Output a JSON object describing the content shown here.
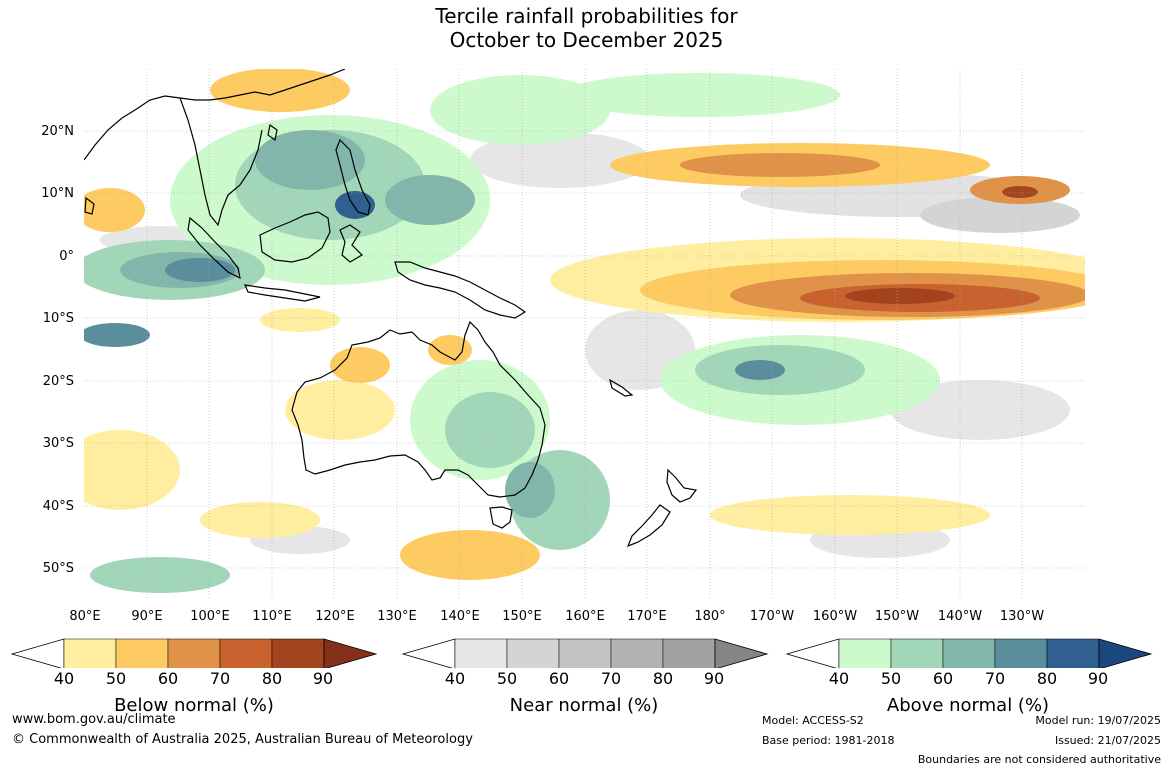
{
  "title": {
    "line1": "Tercile rainfall probabilities for",
    "line2": "October to December 2025"
  },
  "map": {
    "lat_labels": [
      "20°N",
      "10°N",
      "0°",
      "10°S",
      "20°S",
      "30°S",
      "40°S",
      "50°S"
    ],
    "lon_labels": [
      "80°E",
      "90°E",
      "100°E",
      "110°E",
      "120°E",
      "130°E",
      "140°E",
      "150°E",
      "160°E",
      "170°E",
      "180°",
      "170°W",
      "160°W",
      "150°W",
      "140°W",
      "130°W"
    ],
    "colors": {
      "ocean_base": "#ffffff",
      "land_outline": "#000000",
      "gridline": "#aaaaaa"
    }
  },
  "colorbars": [
    {
      "title": "Below normal (%)",
      "ticks": [
        "40",
        "50",
        "60",
        "70",
        "80",
        "90"
      ],
      "colors": [
        "#ffffff",
        "#ffeea0",
        "#fdcb62",
        "#e09348",
        "#c8632f",
        "#a4441f",
        "#85301a"
      ]
    },
    {
      "title": "Near normal (%)",
      "ticks": [
        "40",
        "50",
        "60",
        "70",
        "80",
        "90"
      ],
      "colors": [
        "#ffffff",
        "#e6e6e6",
        "#d4d4d4",
        "#c3c3c3",
        "#b2b2b2",
        "#a2a2a2",
        "#858585"
      ]
    },
    {
      "title": "Above normal (%)",
      "ticks": [
        "40",
        "50",
        "60",
        "70",
        "80",
        "90"
      ],
      "colors": [
        "#ffffff",
        "#ccfacc",
        "#a2d6b8",
        "#82b6aa",
        "#5a8e9c",
        "#306090",
        "#1a487f"
      ]
    }
  ],
  "footer": {
    "website": "www.bom.gov.au/climate",
    "copyright": "© Commonwealth of Australia 2025, Australian Bureau of Meteorology",
    "model": "Model: ACCESS-S2",
    "base_period": "Base period: 1981-2018",
    "model_run": "Model run: 19/07/2025",
    "issued": "Issued: 21/07/2025",
    "disclaimer": "Boundaries are not considered authoritative"
  }
}
